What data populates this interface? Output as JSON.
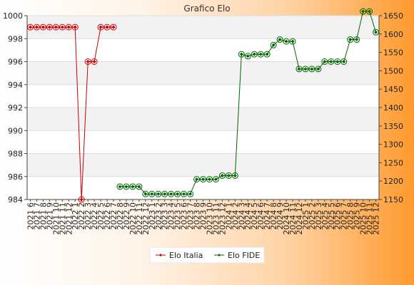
{
  "chart_data": {
    "type": "line",
    "title": "Grafico Elo",
    "xlabel": "",
    "ylabel_left": "",
    "ylabel_right": "",
    "ylim_left": [
      984,
      1000
    ],
    "ylim_right": [
      1150,
      1650
    ],
    "yticks_left": [
      984,
      986,
      988,
      990,
      992,
      994,
      996,
      998,
      1000
    ],
    "yticks_right": [
      1150,
      1200,
      1250,
      1300,
      1350,
      1400,
      1450,
      1500,
      1550,
      1600,
      1650
    ],
    "grid": "horizontal bands",
    "legend_position": "bottom-center",
    "categories": [
      "2021 6",
      "2021 7",
      "2021 8",
      "2021 9",
      "2021 10",
      "2021 11",
      "2021 12",
      "2022 1",
      "2022 2",
      "2022 3",
      "2022 4",
      "2022 5",
      "2022 6",
      "2022 7",
      "2022 8",
      "2022 9",
      "2022 10",
      "2022 11",
      "2022 12",
      "2023 1",
      "2023 2",
      "2023 3",
      "2023 4",
      "2023 5",
      "2023 6",
      "2023 7",
      "2023 8",
      "2023 9",
      "2023 10",
      "2023 11",
      "2023 12",
      "2024 1",
      "2024 2",
      "2024 3",
      "2024 4",
      "2024 5",
      "2024 6",
      "2024 7",
      "2024 8",
      "2024 9",
      "2024 10",
      "2024 11",
      "2024 12",
      "2025 1",
      "2025 2",
      "2025 3",
      "2025 4",
      "2025 5",
      "2025 6",
      "2025 7",
      "2025 8",
      "2025 9",
      "2025 10",
      "2025 11",
      "2025 12"
    ],
    "series": [
      {
        "name": "Elo Italia",
        "axis": "left",
        "color": "#cc0000",
        "values": [
          999,
          999,
          999,
          999,
          999,
          999,
          999,
          999,
          984,
          996,
          996,
          999,
          999,
          999,
          null,
          null,
          null,
          null,
          null,
          null,
          null,
          null,
          null,
          null,
          null,
          null,
          null,
          null,
          null,
          null,
          null,
          null,
          null,
          null,
          null,
          null,
          null,
          null,
          null,
          null,
          null,
          null,
          null,
          null,
          null,
          null,
          null,
          null,
          null,
          null,
          null,
          null,
          null,
          null,
          null
        ]
      },
      {
        "name": "Elo FIDE",
        "axis": "right",
        "color": "#006600",
        "values": [
          null,
          null,
          null,
          null,
          null,
          null,
          null,
          null,
          null,
          null,
          null,
          null,
          null,
          null,
          1185,
          1185,
          1185,
          1185,
          1165,
          1165,
          1165,
          1165,
          1165,
          1165,
          1165,
          1165,
          1205,
          1205,
          1205,
          1205,
          1215,
          1215,
          1215,
          1545,
          1540,
          1545,
          1545,
          1545,
          1570,
          1585,
          1580,
          1580,
          1505,
          1505,
          1505,
          1505,
          1525,
          1525,
          1525,
          1525,
          1585,
          1585,
          1665,
          1665,
          1605
        ]
      }
    ]
  }
}
